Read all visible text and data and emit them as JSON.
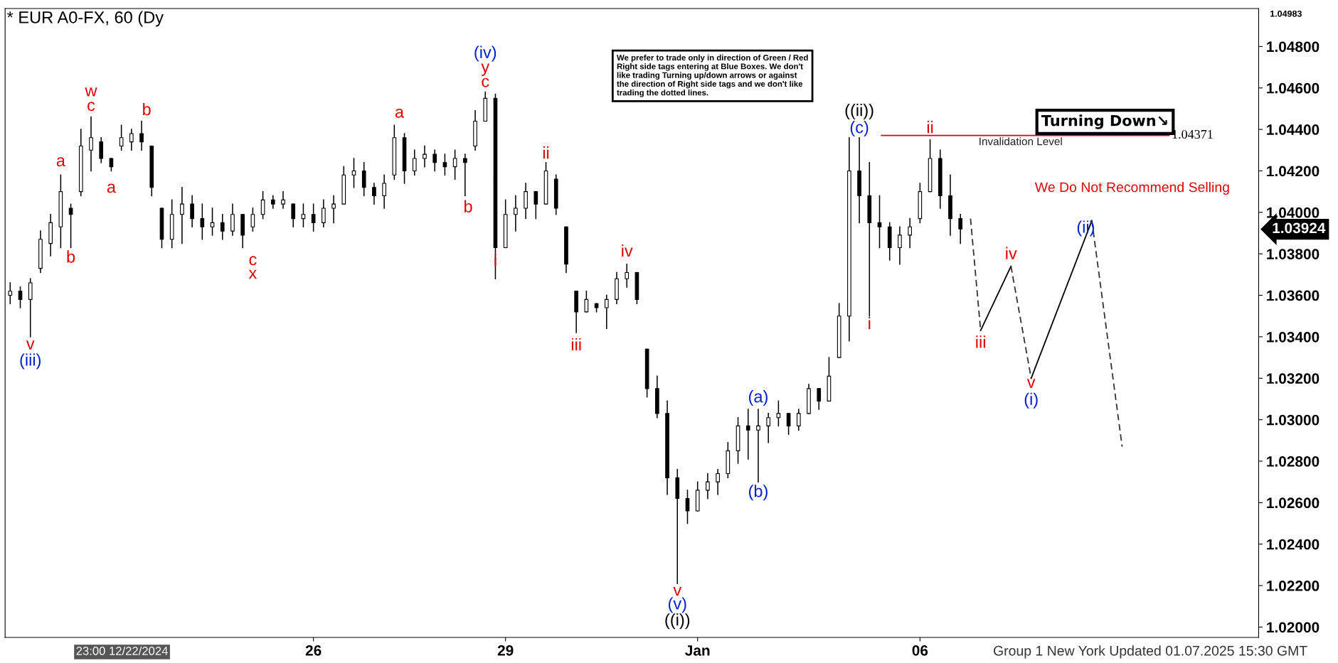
{
  "chart_data": {
    "type": "candlestick",
    "title": "* EUR A0-FX, 60 (Dy",
    "categories": [
      null,
      null,
      null,
      null,
      null,
      null,
      null,
      null,
      null,
      null,
      null,
      null,
      null,
      null,
      null,
      null,
      null,
      null,
      null,
      null,
      null,
      null,
      null,
      null,
      null,
      null,
      null,
      null,
      null,
      null,
      "26",
      null,
      null,
      null,
      null,
      null,
      null,
      null,
      null,
      null,
      null,
      null,
      null,
      null,
      null,
      null,
      null,
      null,
      null,
      "29",
      null,
      null,
      null,
      null,
      null,
      null,
      null,
      null,
      null,
      null,
      null,
      null,
      null,
      null,
      null,
      null,
      null,
      null,
      "Jan",
      null,
      null,
      null,
      null,
      null,
      null,
      null,
      null,
      null,
      null,
      null,
      null,
      null,
      null,
      null,
      null,
      null,
      null,
      null,
      null,
      null,
      "06",
      null,
      null,
      null,
      null,
      null,
      null,
      null,
      null,
      null,
      null,
      null,
      null,
      null,
      null,
      null,
      null,
      null,
      null,
      null,
      null,
      null,
      null,
      null,
      null,
      null,
      null,
      null,
      null,
      null,
      null,
      null,
      null,
      null
    ],
    "ohlc": [
      [
        1.036,
        1.0366,
        1.0356,
        1.0362
      ],
      [
        1.0362,
        1.0364,
        1.0354,
        1.0358
      ],
      [
        1.0358,
        1.0368,
        1.034,
        1.0366
      ],
      [
        1.0373,
        1.0391,
        1.0371,
        1.0387
      ],
      [
        1.0385,
        1.0399,
        1.0379,
        1.0395
      ],
      [
        1.0393,
        1.0418,
        1.0383,
        1.041
      ],
      [
        1.0402,
        1.0404,
        1.0383,
        1.0399
      ],
      [
        1.041,
        1.044,
        1.0408,
        1.0432
      ],
      [
        1.043,
        1.0446,
        1.042,
        1.0436
      ],
      [
        1.0434,
        1.0436,
        1.0424,
        1.0426
      ],
      [
        1.0426,
        1.0426,
        1.042,
        1.0422
      ],
      [
        1.0432,
        1.0442,
        1.043,
        1.0436
      ],
      [
        1.0434,
        1.044,
        1.043,
        1.0438
      ],
      [
        1.0438,
        1.0444,
        1.043,
        1.0434
      ],
      [
        1.0432,
        1.0432,
        1.0408,
        1.0412
      ],
      [
        1.0402,
        1.0402,
        1.0383,
        1.0387
      ],
      [
        1.0387,
        1.0406,
        1.0383,
        1.0399
      ],
      [
        1.0399,
        1.0412,
        1.0385,
        1.0404
      ],
      [
        1.0404,
        1.0408,
        1.0393,
        1.0397
      ],
      [
        1.0397,
        1.0404,
        1.0387,
        1.0393
      ],
      [
        1.0393,
        1.0402,
        1.0389,
        1.0395
      ],
      [
        1.0395,
        1.0399,
        1.0387,
        1.0391
      ],
      [
        1.0391,
        1.0404,
        1.0389,
        1.0399
      ],
      [
        1.0399,
        1.0399,
        1.0383,
        1.0389
      ],
      [
        1.0393,
        1.0402,
        1.0391,
        1.0399
      ],
      [
        1.0399,
        1.041,
        1.0397,
        1.0406
      ],
      [
        1.0406,
        1.0408,
        1.0402,
        1.0404
      ],
      [
        1.0404,
        1.041,
        1.0402,
        1.0406
      ],
      [
        1.0404,
        1.0404,
        1.0393,
        1.0397
      ],
      [
        1.0397,
        1.0404,
        1.0393,
        1.0399
      ],
      [
        1.0399,
        1.0404,
        1.0391,
        1.0395
      ],
      [
        1.0395,
        1.0406,
        1.0393,
        1.0402
      ],
      [
        1.0402,
        1.0408,
        1.0395,
        1.0404
      ],
      [
        1.0404,
        1.0422,
        1.0404,
        1.0418
      ],
      [
        1.0418,
        1.0426,
        1.0412,
        1.042
      ],
      [
        1.042,
        1.0424,
        1.0408,
        1.0412
      ],
      [
        1.0412,
        1.0414,
        1.0404,
        1.0408
      ],
      [
        1.0408,
        1.0418,
        1.0402,
        1.0414
      ],
      [
        1.0418,
        1.0442,
        1.0416,
        1.0436
      ],
      [
        1.0436,
        1.0438,
        1.0414,
        1.042
      ],
      [
        1.042,
        1.043,
        1.0418,
        1.0426
      ],
      [
        1.0426,
        1.0432,
        1.0422,
        1.0428
      ],
      [
        1.0428,
        1.043,
        1.042,
        1.0424
      ],
      [
        1.0424,
        1.0428,
        1.0418,
        1.0422
      ],
      [
        1.0422,
        1.043,
        1.0416,
        1.0426
      ],
      [
        1.0426,
        1.0428,
        1.0408,
        1.0424
      ],
      [
        1.0432,
        1.0449,
        1.043,
        1.0444
      ],
      [
        1.0444,
        1.0458,
        1.0444,
        1.0455
      ],
      [
        1.0455,
        1.0457,
        1.0368,
        1.0383
      ],
      [
        1.0383,
        1.0406,
        1.0383,
        1.0399
      ],
      [
        1.0399,
        1.0408,
        1.0391,
        1.0402
      ],
      [
        1.0402,
        1.0414,
        1.0397,
        1.041
      ],
      [
        1.041,
        1.041,
        1.0397,
        1.0404
      ],
      [
        1.0404,
        1.0424,
        1.0404,
        1.042
      ],
      [
        1.0416,
        1.0418,
        1.0399,
        1.0402
      ],
      [
        1.0393,
        1.0393,
        1.0371,
        1.0375
      ],
      [
        1.0362,
        1.0362,
        1.0342,
        1.0352
      ],
      [
        1.0352,
        1.0362,
        1.0352,
        1.0358
      ],
      [
        1.0356,
        1.0356,
        1.0352,
        1.0354
      ],
      [
        1.0354,
        1.036,
        1.0344,
        1.0358
      ],
      [
        1.0358,
        1.0371,
        1.0356,
        1.0368
      ],
      [
        1.0368,
        1.0375,
        1.0364,
        1.0371
      ],
      [
        1.0371,
        1.0371,
        1.0356,
        1.0358
      ],
      [
        1.0334,
        1.0334,
        1.0311,
        1.0315
      ],
      [
        1.0315,
        1.0321,
        1.0301,
        1.0303
      ],
      [
        1.0303,
        1.0309,
        1.0264,
        1.0272
      ],
      [
        1.0272,
        1.0276,
        1.0221,
        1.0262
      ],
      [
        1.0262,
        1.0266,
        1.025,
        1.0256
      ],
      [
        1.0256,
        1.027,
        1.0256,
        1.0266
      ],
      [
        1.0266,
        1.0274,
        1.0262,
        1.027
      ],
      [
        1.027,
        1.0276,
        1.0264,
        1.0274
      ],
      [
        1.0274,
        1.0289,
        1.0272,
        1.0285
      ],
      [
        1.0285,
        1.0301,
        1.0279,
        1.0297
      ],
      [
        1.0297,
        1.0305,
        1.0281,
        1.0295
      ],
      [
        1.0295,
        1.0305,
        1.027,
        1.0297
      ],
      [
        1.0297,
        1.0303,
        1.0289,
        1.0301
      ],
      [
        1.0301,
        1.0309,
        1.0297,
        1.0303
      ],
      [
        1.0303,
        1.0303,
        1.0293,
        1.0297
      ],
      [
        1.0297,
        1.0305,
        1.0295,
        1.0303
      ],
      [
        1.0303,
        1.0317,
        1.0303,
        1.0315
      ],
      [
        1.0315,
        1.0315,
        1.0305,
        1.0309
      ],
      [
        1.0309,
        1.033,
        1.0309,
        1.0321
      ],
      [
        1.033,
        1.0356,
        1.033,
        1.035
      ],
      [
        1.035,
        1.0436,
        1.0338,
        1.042
      ],
      [
        1.042,
        1.0436,
        1.0395,
        1.0408
      ],
      [
        1.0408,
        1.0424,
        1.035,
        1.0395
      ],
      [
        1.0395,
        1.0408,
        1.0383,
        1.0393
      ],
      [
        1.0393,
        1.0395,
        1.0377,
        1.0383
      ],
      [
        1.0383,
        1.0393,
        1.0375,
        1.0389
      ],
      [
        1.0389,
        1.0397,
        1.0383,
        1.0393
      ],
      [
        1.0397,
        1.0414,
        1.0395,
        1.041
      ],
      [
        1.041,
        1.0435,
        1.041,
        1.0426
      ],
      [
        1.0426,
        1.043,
        1.0402,
        1.0408
      ],
      [
        1.0408,
        1.0418,
        1.0389,
        1.0397
      ],
      [
        1.0397,
        1.0399,
        1.0385,
        1.0392
      ],
      null,
      null,
      null,
      null,
      null,
      null,
      null,
      null,
      null,
      null,
      null,
      null,
      null,
      null,
      null,
      null,
      null,
      null,
      null,
      null,
      null,
      null,
      null,
      null,
      null,
      null,
      null,
      null,
      null
    ],
    "series": [
      {
        "type": "line",
        "line_style": "dashed",
        "color": "#333333",
        "values": [
          null,
          null,
          null,
          null,
          null,
          null,
          null,
          null,
          null,
          null,
          null,
          null,
          null,
          null,
          null,
          null,
          null,
          null,
          null,
          null,
          null,
          null,
          null,
          null,
          null,
          null,
          null,
          null,
          null,
          null,
          null,
          null,
          null,
          null,
          null,
          null,
          null,
          null,
          null,
          null,
          null,
          null,
          null,
          null,
          null,
          null,
          null,
          null,
          null,
          null,
          null,
          null,
          null,
          null,
          null,
          null,
          null,
          null,
          null,
          null,
          null,
          null,
          null,
          null,
          null,
          null,
          null,
          null,
          null,
          null,
          null,
          null,
          null,
          null,
          null,
          null,
          null,
          null,
          null,
          null,
          null,
          null,
          null,
          null,
          null,
          null,
          null,
          null,
          null,
          null,
          null,
          null,
          null,
          null,
          null,
          1.0397,
          1.0343,
          null,
          null,
          null,
          null,
          null,
          null,
          null,
          null,
          null,
          null,
          null,
          null,
          null,
          null,
          null,
          null,
          null,
          null,
          null,
          null,
          null,
          null,
          null,
          null,
          null,
          null,
          null
        ]
      },
      {
        "type": "line",
        "line_style": "solid",
        "color": "#000000",
        "values": [
          null,
          null,
          null,
          null,
          null,
          null,
          null,
          null,
          null,
          null,
          null,
          null,
          null,
          null,
          null,
          null,
          null,
          null,
          null,
          null,
          null,
          null,
          null,
          null,
          null,
          null,
          null,
          null,
          null,
          null,
          null,
          null,
          null,
          null,
          null,
          null,
          null,
          null,
          null,
          null,
          null,
          null,
          null,
          null,
          null,
          null,
          null,
          null,
          null,
          null,
          null,
          null,
          null,
          null,
          null,
          null,
          null,
          null,
          null,
          null,
          null,
          null,
          null,
          null,
          null,
          null,
          null,
          null,
          null,
          null,
          null,
          null,
          null,
          null,
          null,
          null,
          null,
          null,
          null,
          null,
          null,
          null,
          null,
          null,
          null,
          null,
          null,
          null,
          null,
          null,
          null,
          null,
          null,
          null,
          null,
          null,
          1.0343,
          null,
          null,
          1.0374,
          null,
          null,
          null,
          null,
          null,
          null,
          null,
          null,
          null,
          null,
          null,
          null,
          null,
          null,
          null,
          null,
          null,
          null,
          null,
          null,
          null,
          null,
          null,
          null
        ]
      },
      {
        "type": "line",
        "line_style": "dashed",
        "color": "#333333",
        "values": [
          null,
          null,
          null,
          null,
          null,
          null,
          null,
          null,
          null,
          null,
          null,
          null,
          null,
          null,
          null,
          null,
          null,
          null,
          null,
          null,
          null,
          null,
          null,
          null,
          null,
          null,
          null,
          null,
          null,
          null,
          null,
          null,
          null,
          null,
          null,
          null,
          null,
          null,
          null,
          null,
          null,
          null,
          null,
          null,
          null,
          null,
          null,
          null,
          null,
          null,
          null,
          null,
          null,
          null,
          null,
          null,
          null,
          null,
          null,
          null,
          null,
          null,
          null,
          null,
          null,
          null,
          null,
          null,
          null,
          null,
          null,
          null,
          null,
          null,
          null,
          null,
          null,
          null,
          null,
          null,
          null,
          null,
          null,
          null,
          null,
          null,
          null,
          null,
          null,
          null,
          null,
          null,
          null,
          null,
          null,
          null,
          null,
          null,
          null,
          1.0374,
          null,
          1.032,
          null,
          null,
          null,
          null,
          null,
          null,
          null,
          null,
          null,
          null,
          null,
          null,
          null,
          null,
          null,
          null,
          null,
          null,
          null,
          null,
          null,
          null
        ]
      },
      {
        "type": "line",
        "line_style": "solid",
        "color": "#000000",
        "values": [
          null,
          null,
          null,
          null,
          null,
          null,
          null,
          null,
          null,
          null,
          null,
          null,
          null,
          null,
          null,
          null,
          null,
          null,
          null,
          null,
          null,
          null,
          null,
          null,
          null,
          null,
          null,
          null,
          null,
          null,
          null,
          null,
          null,
          null,
          null,
          null,
          null,
          null,
          null,
          null,
          null,
          null,
          null,
          null,
          null,
          null,
          null,
          null,
          null,
          null,
          null,
          null,
          null,
          null,
          null,
          null,
          null,
          null,
          null,
          null,
          null,
          null,
          null,
          null,
          null,
          null,
          null,
          null,
          null,
          null,
          null,
          null,
          null,
          null,
          null,
          null,
          null,
          null,
          null,
          null,
          null,
          null,
          null,
          null,
          null,
          null,
          null,
          null,
          null,
          null,
          null,
          null,
          null,
          null,
          null,
          null,
          null,
          null,
          null,
          null,
          null,
          1.032,
          null,
          null,
          null,
          null,
          null,
          1.0396,
          null,
          null,
          null,
          null,
          null,
          null,
          null,
          null,
          null,
          null,
          null,
          null,
          null,
          null,
          null,
          null
        ]
      },
      {
        "type": "line",
        "line_style": "dashed",
        "color": "#333333",
        "values": [
          null,
          null,
          null,
          null,
          null,
          null,
          null,
          null,
          null,
          null,
          null,
          null,
          null,
          null,
          null,
          null,
          null,
          null,
          null,
          null,
          null,
          null,
          null,
          null,
          null,
          null,
          null,
          null,
          null,
          null,
          null,
          null,
          null,
          null,
          null,
          null,
          null,
          null,
          null,
          null,
          null,
          null,
          null,
          null,
          null,
          null,
          null,
          null,
          null,
          null,
          null,
          null,
          null,
          null,
          null,
          null,
          null,
          null,
          null,
          null,
          null,
          null,
          null,
          null,
          null,
          null,
          null,
          null,
          null,
          null,
          null,
          null,
          null,
          null,
          null,
          null,
          null,
          null,
          null,
          null,
          null,
          null,
          null,
          null,
          null,
          null,
          null,
          null,
          null,
          null,
          null,
          null,
          null,
          null,
          null,
          null,
          null,
          null,
          null,
          null,
          null,
          null,
          null,
          null,
          null,
          null,
          null,
          1.0396,
          null,
          null,
          1.0287,
          null,
          null,
          null,
          null,
          null,
          null,
          null,
          null,
          null,
          null,
          null,
          null,
          null
        ]
      }
    ],
    "ylim": [
      1.0195,
      1.04983
    ],
    "yticks": [
      {
        "value": 1.02,
        "label": "1.02000"
      },
      {
        "value": 1.022,
        "label": "1.02200"
      },
      {
        "value": 1.024,
        "label": "1.02400"
      },
      {
        "value": 1.026,
        "label": "1.02600"
      },
      {
        "value": 1.028,
        "label": "1.02800"
      },
      {
        "value": 1.03,
        "label": "1.03000"
      },
      {
        "value": 1.032,
        "label": "1.03200"
      },
      {
        "value": 1.034,
        "label": "1.03400"
      },
      {
        "value": 1.036,
        "label": "1.03600"
      },
      {
        "value": 1.038,
        "label": "1.03800"
      },
      {
        "value": 1.04,
        "label": "1.04000"
      },
      {
        "value": 1.042,
        "label": "1.04200"
      },
      {
        "value": 1.044,
        "label": "1.04400"
      },
      {
        "value": 1.046,
        "label": "1.04600"
      },
      {
        "value": 1.048,
        "label": "1.04800"
      }
    ],
    "ref_lines": [
      {
        "axis": "y",
        "value": 1.04371,
        "label": "1.04371",
        "color": "#e00000"
      }
    ],
    "annotations": [
      "We prefer to trade only in direction of Green / Red Right side tags entering at Blue Boxes. We don't like trading Turning up/down arrows or against the direction of Right side tags and we don't like trading the dotted lines.",
      "Turning Down↘",
      "We Do Not Recommend Selling",
      "Invalidation Level",
      "Group 1 New York Updated 01.07.2025 15:30 GMT",
      "23:00 12/22/2024",
      "1.04983",
      "1.03924",
      "w",
      "c",
      "a",
      "b",
      "a",
      "b",
      "v",
      "(iii)",
      "c",
      "x",
      "a",
      "(iv)",
      "y",
      "c",
      "b",
      "i",
      "ii",
      "iii",
      "iv",
      "v",
      "(v)",
      "((i))",
      "(a)",
      "(b)",
      "((ii))",
      "(c)",
      "ii",
      "i",
      "iii",
      "iv",
      "v",
      "(i)",
      "(ii)"
    ]
  }
}
